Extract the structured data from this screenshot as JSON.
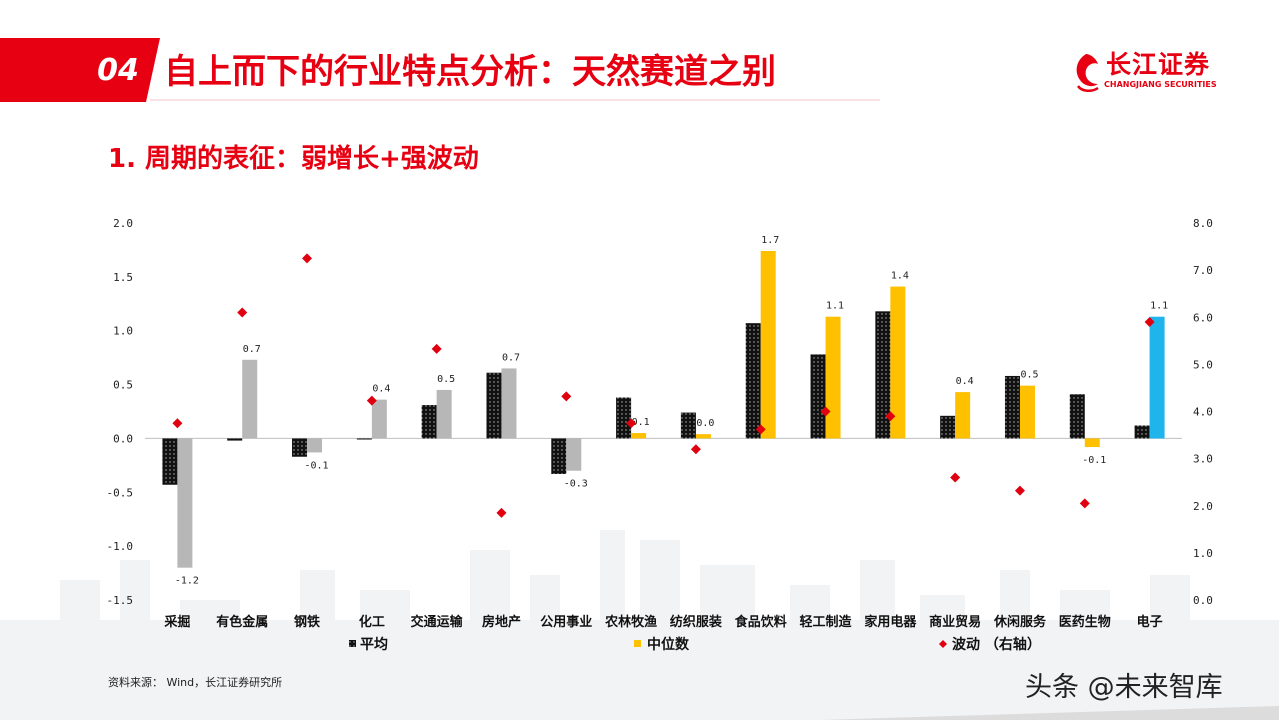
{
  "header": {
    "section_number": "04",
    "title": "自上而下的行业特点分析：天然赛道之别",
    "logo_text": "长江证券",
    "logo_subtext": "CHANGJIANG SECURITIES"
  },
  "subtitle": "1. 周期的表征：弱增长+强波动",
  "source": "资料来源： Wind，长江证券研究所",
  "watermark": "头条 @未来智库",
  "colors": {
    "brand_red": "#e60012",
    "avg_black": "#111111",
    "median_gray": "#b7b7b7",
    "median_yellow": "#ffc000",
    "median_blue": "#1fb4ec",
    "volatility_red": "#e00010"
  },
  "chart_data": {
    "type": "bar",
    "categories": [
      "采掘",
      "有色金属",
      "钢铁",
      "化工",
      "交通运输",
      "房地产",
      "公用事业",
      "农林牧渔",
      "纺织服装",
      "食品饮料",
      "轻工制造",
      "家用电器",
      "商业贸易",
      "休闲服务",
      "医药生物",
      "电子"
    ],
    "series": [
      {
        "name": "平均",
        "axis": "left",
        "values": [
          -0.43,
          -0.02,
          -0.17,
          -0.01,
          0.31,
          0.61,
          -0.33,
          0.38,
          0.24,
          1.07,
          0.78,
          1.18,
          0.21,
          0.58,
          0.41,
          0.12
        ]
      },
      {
        "name": "中位数",
        "axis": "left",
        "values": [
          -1.2,
          0.73,
          -0.13,
          0.36,
          0.45,
          0.65,
          -0.3,
          0.05,
          0.04,
          1.74,
          1.13,
          1.41,
          0.43,
          0.49,
          -0.08,
          1.13
        ],
        "data_labels": [
          "-1.2",
          "0.7",
          "-0.1",
          "0.4",
          "0.5",
          "0.7",
          "-0.3",
          "0.1",
          "0.0",
          "1.7",
          "1.1",
          "1.4",
          "0.4",
          "0.5",
          "-0.1",
          "1.1"
        ],
        "colors": [
          "#b7b7b7",
          "#b7b7b7",
          "#b7b7b7",
          "#b7b7b7",
          "#b7b7b7",
          "#b7b7b7",
          "#b7b7b7",
          "#ffc000",
          "#ffc000",
          "#ffc000",
          "#ffc000",
          "#ffc000",
          "#ffc000",
          "#ffc000",
          "#ffc000",
          "#1fb4ec"
        ]
      },
      {
        "name": "波动 （右轴）",
        "axis": "right",
        "marker": "diamond",
        "values": [
          3.75,
          6.1,
          7.25,
          4.23,
          5.33,
          1.85,
          4.32,
          3.75,
          3.2,
          3.62,
          4.0,
          3.9,
          2.6,
          2.32,
          2.05,
          5.9
        ]
      }
    ],
    "ylim": [
      -1.5,
      2.0
    ],
    "yticks": [
      "2.0",
      "1.5",
      "1.0",
      "0.5",
      "0.0",
      "-0.5",
      "-1.0",
      "-1.5"
    ],
    "y2lim": [
      0.0,
      8.0
    ],
    "y2ticks": [
      "8.0",
      "7.0",
      "6.0",
      "5.0",
      "4.0",
      "3.0",
      "2.0",
      "1.0",
      "0.0"
    ],
    "legend": {
      "position": "bottom",
      "items": [
        "平均",
        "中位数",
        "波动 （右轴）"
      ]
    },
    "grid": false
  }
}
